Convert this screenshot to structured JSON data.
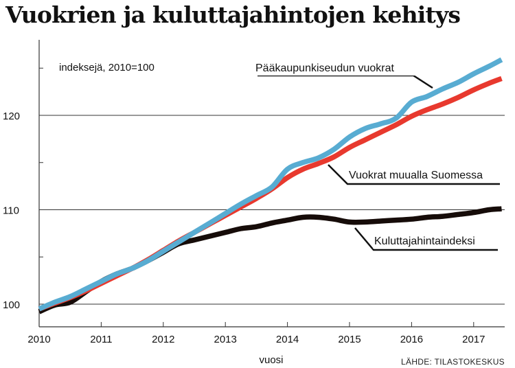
{
  "chart_data": {
    "type": "line",
    "title": "Vuokrien ja kuluttajahintojen kehitys",
    "note": "indeksejä, 2010=100",
    "xlabel": "vuosi",
    "ylabel": "",
    "source": "LÄHDE: TILASTOKESKUS",
    "x_ticks": [
      "2010",
      "2011",
      "2012",
      "2013",
      "2014",
      "2015",
      "2016",
      "2017"
    ],
    "y_ticks": [
      "100",
      "110",
      "120"
    ],
    "xlim": [
      2010,
      2017.5
    ],
    "ylim": [
      97.6,
      128
    ],
    "grid": "horizontal",
    "colors": {
      "blue": "#58acd2",
      "red": "#e8392e",
      "black": "#160c09"
    },
    "series": [
      {
        "name": "Pääkaupunkiseudun vuokrat",
        "color": "blue",
        "x": [
          2010,
          2010.25,
          2010.5,
          2010.75,
          2011,
          2011.25,
          2011.5,
          2011.75,
          2012,
          2012.25,
          2012.5,
          2012.75,
          2013,
          2013.25,
          2013.5,
          2013.75,
          2014,
          2014.25,
          2014.5,
          2014.75,
          2015,
          2015.25,
          2015.5,
          2015.75,
          2016,
          2016.25,
          2016.5,
          2016.75,
          2017,
          2017.25,
          2017.45
        ],
        "values": [
          99.5,
          100.2,
          100.8,
          101.6,
          102.4,
          103.2,
          103.8,
          104.6,
          105.6,
          106.6,
          107.6,
          108.6,
          109.6,
          110.6,
          111.5,
          112.4,
          114.3,
          115.0,
          115.5,
          116.4,
          117.7,
          118.6,
          119.1,
          119.7,
          121.4,
          122.0,
          122.8,
          123.5,
          124.4,
          125.2,
          125.9
        ]
      },
      {
        "name": "Vuokrat muualla Suomessa",
        "color": "red",
        "x": [
          2010,
          2010.25,
          2010.5,
          2010.75,
          2011,
          2011.25,
          2011.5,
          2011.75,
          2012,
          2012.25,
          2012.5,
          2012.75,
          2013,
          2013.25,
          2013.5,
          2013.75,
          2014,
          2014.25,
          2014.5,
          2014.75,
          2015,
          2015.25,
          2015.5,
          2015.75,
          2016,
          2016.25,
          2016.5,
          2016.75,
          2017,
          2017.25,
          2017.45
        ],
        "values": [
          99.5,
          100.1,
          100.7,
          101.4,
          102.2,
          103.0,
          103.8,
          104.7,
          105.7,
          106.7,
          107.6,
          108.5,
          109.4,
          110.3,
          111.2,
          112.2,
          113.4,
          114.3,
          114.9,
          115.6,
          116.6,
          117.4,
          118.2,
          119.0,
          119.9,
          120.6,
          121.2,
          121.9,
          122.7,
          123.4,
          123.9
        ]
      },
      {
        "name": "Kuluttajahintaindeksi",
        "color": "black",
        "x": [
          2010,
          2010.25,
          2010.5,
          2010.75,
          2011,
          2011.25,
          2011.5,
          2011.75,
          2012,
          2012.25,
          2012.5,
          2012.75,
          2013,
          2013.25,
          2013.5,
          2013.75,
          2014,
          2014.25,
          2014.5,
          2014.75,
          2015,
          2015.25,
          2015.5,
          2015.75,
          2016,
          2016.25,
          2016.5,
          2016.75,
          2017,
          2017.25,
          2017.45
        ],
        "values": [
          99.2,
          99.9,
          100.2,
          101.3,
          102.4,
          103.2,
          103.8,
          104.6,
          105.5,
          106.4,
          106.8,
          107.2,
          107.6,
          108.0,
          108.2,
          108.6,
          108.9,
          109.2,
          109.2,
          109.0,
          108.7,
          108.7,
          108.8,
          108.9,
          109.0,
          109.2,
          109.3,
          109.5,
          109.7,
          110.0,
          110.1
        ]
      }
    ]
  }
}
